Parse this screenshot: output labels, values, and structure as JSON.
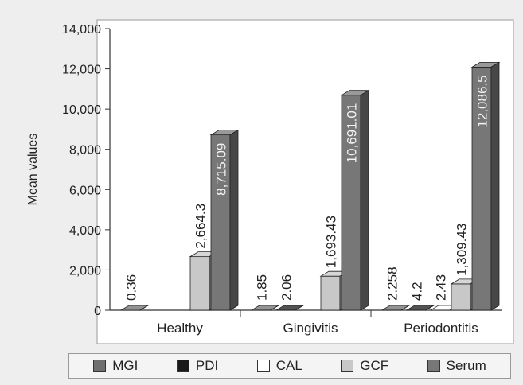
{
  "chart_data": {
    "type": "bar",
    "ylabel": "Mean values",
    "xlabel": "",
    "ylim": [
      0,
      14000
    ],
    "yticks": [
      "0",
      "2,000",
      "4,000",
      "6,000",
      "8,000",
      "10,000",
      "12,000",
      "14,000"
    ],
    "categories": [
      "Healthy",
      "Gingivitis",
      "Periodontitis"
    ],
    "series": [
      {
        "name": "MGI",
        "values": [
          0.36,
          1.85,
          2.258
        ],
        "labels": [
          "0.36",
          "1.85",
          "2.258"
        ],
        "color": "#6f6f6f"
      },
      {
        "name": "PDI",
        "values": [
          null,
          2.06,
          4.2
        ],
        "labels": [
          "",
          "2.06",
          "4.2"
        ],
        "color": "#1a1a1a"
      },
      {
        "name": "CAL",
        "values": [
          null,
          null,
          2.43
        ],
        "labels": [
          "",
          "",
          "2.43"
        ],
        "color": "#ffffff"
      },
      {
        "name": "GCF",
        "values": [
          2664.3,
          1693.43,
          1309.43
        ],
        "labels": [
          "2,664.3",
          "1,693.43",
          "1,309.43"
        ],
        "color": "#c8c8c8"
      },
      {
        "name": "Serum",
        "values": [
          8715.09,
          10691.01,
          12086.5
        ],
        "labels": [
          "8,715.09",
          "10,691.01",
          "12,086.5"
        ],
        "color": "#777777"
      }
    ],
    "grid": false,
    "legend_position": "bottom"
  }
}
